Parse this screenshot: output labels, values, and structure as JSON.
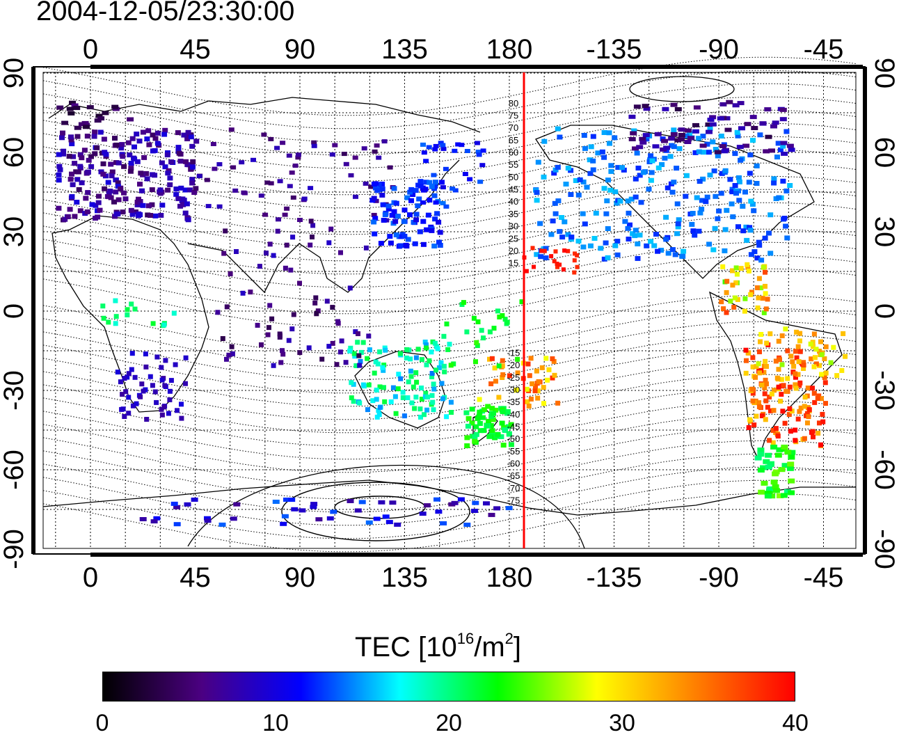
{
  "title": "2004-12-05/23:30:00",
  "map": {
    "lon_ticks_top": [
      "0",
      "45",
      "90",
      "135",
      "180",
      "-135",
      "-90",
      "-45"
    ],
    "lon_ticks_bottom": [
      "0",
      "45",
      "90",
      "135",
      "180",
      "-135",
      "-90",
      "-45"
    ],
    "lat_ticks_left": [
      "90",
      "60",
      "30",
      "0",
      "-30",
      "-60",
      "-90"
    ],
    "lat_ticks_right": [
      "90",
      "60",
      "30",
      "0",
      "-30",
      "-60",
      "-90"
    ],
    "meridian_line_color": "#ff0000",
    "magnetic_latitude_labels": [
      "80",
      "75",
      "70",
      "65",
      "60",
      "55",
      "50",
      "45",
      "40",
      "35",
      "30",
      "25",
      "20",
      "15",
      "-15",
      "-20",
      "-25",
      "-30",
      "-35",
      "-40",
      "-45",
      "-50",
      "-55",
      "-60",
      "-65",
      "-70",
      "-75"
    ]
  },
  "colorbar": {
    "title": "TEC  [10",
    "title_exp": "16",
    "title_unit": "/m",
    "title_unit_exp": "2",
    "title_close": "]",
    "min": 0,
    "max": 40,
    "tick_labels": [
      "0",
      "10",
      "20",
      "30",
      "40"
    ],
    "colors": [
      "#000000",
      "#4b0082",
      "#0000ff",
      "#00ffff",
      "#00ff00",
      "#ffff00",
      "#ff7f00",
      "#ff0000"
    ]
  }
}
